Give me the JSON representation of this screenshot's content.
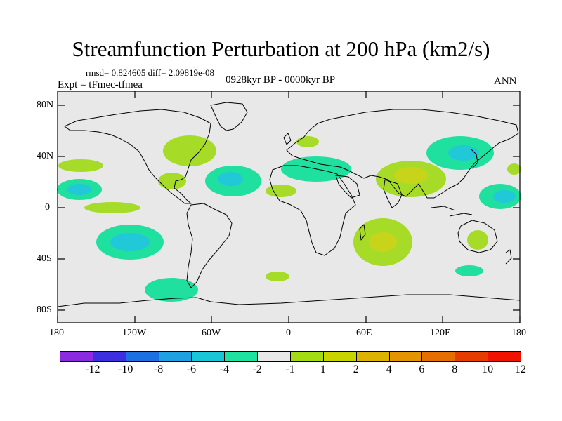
{
  "title": "Streamfunction Perturbation at 200 hPa (km2/s)",
  "stats": "rmsd= 0.824605 diff= 2.09819e-08",
  "experiment": "Expt = tFmec-tfmea",
  "period": "0928kyr BP - 0000kyr BP",
  "season": "ANN",
  "lat_labels": [
    "80N",
    "40N",
    "0",
    "40S",
    "80S"
  ],
  "lon_labels": [
    "180",
    "120W",
    "60W",
    "0",
    "60E",
    "120E",
    "180"
  ],
  "colorbar": {
    "labels": [
      "-12",
      "-10",
      "-8",
      "-6",
      "-4",
      "-2",
      "-1",
      "1",
      "2",
      "4",
      "6",
      "8",
      "10",
      "12"
    ],
    "colors": [
      "#8a2be2",
      "#3c2fe0",
      "#1e6fe0",
      "#1fa0e0",
      "#19c6d8",
      "#1ee3a0",
      "#e8e8e8",
      "#a4dc14",
      "#c8d400",
      "#dcb400",
      "#e39400",
      "#e66e00",
      "#e63c00",
      "#f01400"
    ]
  },
  "colors": {
    "land_bg": "#e8e8e8",
    "green": "#a6dc28",
    "yellow_green": "#c8d41a",
    "tan": "#dcb43c",
    "teal": "#20e0a0",
    "cyan": "#20c8d8"
  }
}
